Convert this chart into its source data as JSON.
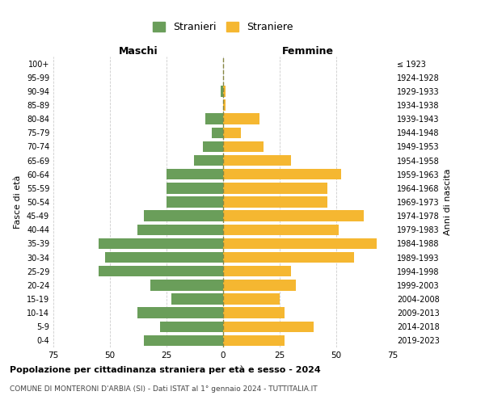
{
  "age_groups": [
    "0-4",
    "5-9",
    "10-14",
    "15-19",
    "20-24",
    "25-29",
    "30-34",
    "35-39",
    "40-44",
    "45-49",
    "50-54",
    "55-59",
    "60-64",
    "65-69",
    "70-74",
    "75-79",
    "80-84",
    "85-89",
    "90-94",
    "95-99",
    "100+"
  ],
  "birth_years": [
    "2019-2023",
    "2014-2018",
    "2009-2013",
    "2004-2008",
    "1999-2003",
    "1994-1998",
    "1989-1993",
    "1984-1988",
    "1979-1983",
    "1974-1978",
    "1969-1973",
    "1964-1968",
    "1959-1963",
    "1954-1958",
    "1949-1953",
    "1944-1948",
    "1939-1943",
    "1934-1938",
    "1929-1933",
    "1924-1928",
    "≤ 1923"
  ],
  "maschi": [
    35,
    28,
    38,
    23,
    32,
    55,
    52,
    55,
    38,
    35,
    25,
    25,
    25,
    13,
    9,
    5,
    8,
    0,
    1,
    0,
    0
  ],
  "femmine": [
    27,
    40,
    27,
    25,
    32,
    30,
    58,
    68,
    51,
    62,
    46,
    46,
    52,
    30,
    18,
    8,
    16,
    1,
    1,
    0,
    0
  ],
  "color_maschi": "#6a9e5a",
  "color_femmine": "#f5b731",
  "color_center_line": "#888844",
  "title": "Popolazione per cittadinanza straniera per età e sesso - 2024",
  "subtitle": "COMUNE DI MONTERONI D'ARBIA (SI) - Dati ISTAT al 1° gennaio 2024 - TUTTITALIA.IT",
  "ylabel_left": "Fasce di età",
  "ylabel_right": "Anni di nascita",
  "xlabel_left": "Maschi",
  "xlabel_right": "Femmine",
  "legend_maschi": "Stranieri",
  "legend_femmine": "Straniere",
  "xlim": 75,
  "background_color": "#ffffff",
  "grid_color": "#cccccc"
}
